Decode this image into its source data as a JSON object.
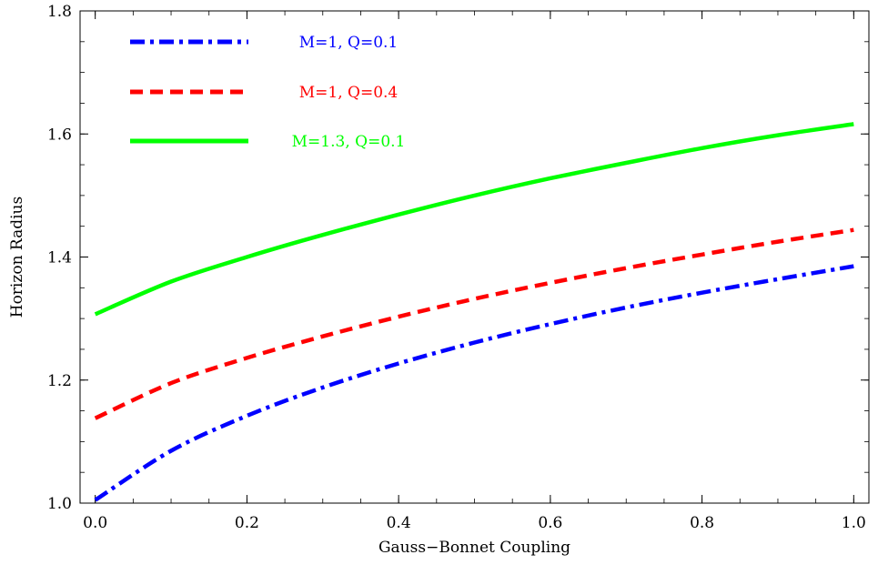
{
  "chart_data": {
    "type": "line",
    "title": "",
    "xlabel": "Gauss−Bonnet Coupling",
    "ylabel": "Horizon Radius",
    "xlim": [
      -0.02,
      1.02
    ],
    "ylim": [
      1.0,
      1.8
    ],
    "x_ticks": [
      "0.0",
      "0.2",
      "0.4",
      "0.6",
      "0.8",
      "1.0"
    ],
    "y_ticks": [
      "1.0",
      "1.2",
      "1.4",
      "1.6",
      "1.8"
    ],
    "grid": false,
    "legend_position": "top-left",
    "x": [
      0.0,
      0.1,
      0.2,
      0.3,
      0.4,
      0.5,
      0.6,
      0.7,
      0.8,
      0.9,
      1.0
    ],
    "series": [
      {
        "name": "M=1, Q=0.1",
        "color": "#0000ff",
        "style": "dash-dot",
        "values": [
          1.005,
          1.085,
          1.142,
          1.188,
          1.227,
          1.261,
          1.291,
          1.318,
          1.342,
          1.364,
          1.385
        ]
      },
      {
        "name": "M=1, Q=0.4",
        "color": "#ff0000",
        "style": "dashed",
        "values": [
          1.138,
          1.195,
          1.236,
          1.271,
          1.303,
          1.332,
          1.358,
          1.382,
          1.404,
          1.425,
          1.444
        ]
      },
      {
        "name": "M=1.3, Q=0.1",
        "color": "#00ff00",
        "style": "solid",
        "values": [
          1.307,
          1.36,
          1.4,
          1.436,
          1.469,
          1.5,
          1.528,
          1.553,
          1.577,
          1.598,
          1.616
        ]
      }
    ]
  }
}
